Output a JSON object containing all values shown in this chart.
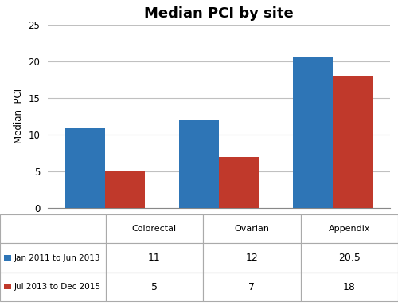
{
  "title": "Median PCI by site",
  "categories": [
    "Colorectal",
    "Ovarian",
    "Appendix"
  ],
  "series": [
    {
      "label": "Jan 2011 to Jun 2013",
      "values": [
        11,
        12,
        20.5
      ],
      "color": "#2E75B6"
    },
    {
      "label": "Jul 2013 to Dec 2015",
      "values": [
        5,
        7,
        18
      ],
      "color": "#C0392B"
    }
  ],
  "ylabel": "Median  PCI",
  "ylim": [
    0,
    25
  ],
  "yticks": [
    0,
    5,
    10,
    15,
    20,
    25
  ],
  "bar_width": 0.35,
  "table_row1": [
    "11",
    "12",
    "20.5"
  ],
  "table_row2": [
    "5",
    "7",
    "18"
  ],
  "background_color": "#ffffff",
  "grid_color": "#c0c0c0",
  "table_border_color": "#aaaaaa",
  "legend_icon_colors": [
    "#2E75B6",
    "#C0392B"
  ],
  "legend_labels": [
    "Jan 2011 to Jun 2013",
    "Jul 2013 to Dec 2015"
  ]
}
